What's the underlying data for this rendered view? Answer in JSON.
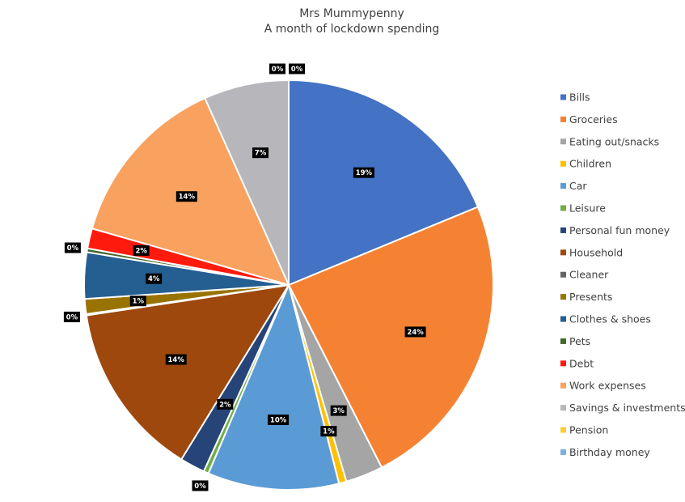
{
  "chart_data": {
    "type": "pie",
    "title": "Mrs Mummypenny",
    "subtitle": "A month of lockdown spending",
    "legend_position": "right",
    "slices": [
      {
        "name": "Bills",
        "value": 19,
        "label": "19%",
        "color": "#4472C4"
      },
      {
        "name": "Groceries",
        "value": 24,
        "label": "24%",
        "color": "#F58233"
      },
      {
        "name": "Eating out/snacks",
        "value": 3,
        "label": "3%",
        "color": "#A5A5A5"
      },
      {
        "name": "Children",
        "value": 0.6,
        "label": "1%",
        "color": "#FFC000"
      },
      {
        "name": "Car",
        "value": 10.5,
        "label": "10%",
        "color": "#5B9BD5"
      },
      {
        "name": "Leisure",
        "value": 0.4,
        "label": "0%",
        "color": "#70AD47"
      },
      {
        "name": "Personal fun money",
        "value": 2,
        "label": "2%",
        "color": "#264478"
      },
      {
        "name": "Household",
        "value": 14,
        "label": "14%",
        "color": "#9E480E"
      },
      {
        "name": "Cleaner",
        "value": 0.1,
        "label": "0%",
        "color": "#636363"
      },
      {
        "name": "Presents",
        "value": 1.2,
        "label": "1%",
        "color": "#997300"
      },
      {
        "name": "Clothes & shoes",
        "value": 3.7,
        "label": "4%",
        "color": "#255E91"
      },
      {
        "name": "Pets",
        "value": 0.3,
        "label": "0%",
        "color": "#43682B"
      },
      {
        "name": "Debt",
        "value": 1.6,
        "label": "2%",
        "color": "#FF1A0E"
      },
      {
        "name": "Work expenses",
        "value": 14,
        "label": "14%",
        "color": "#F9A15F"
      },
      {
        "name": "Savings & investments",
        "value": 6.8,
        "label": "7%",
        "color": "#B7B6BB"
      },
      {
        "name": "Pension",
        "value": 0,
        "label": "0%",
        "color": "#FFCD33"
      },
      {
        "name": "Birthday money",
        "value": 0,
        "label": "0%",
        "color": "#7CAFDD"
      }
    ]
  }
}
